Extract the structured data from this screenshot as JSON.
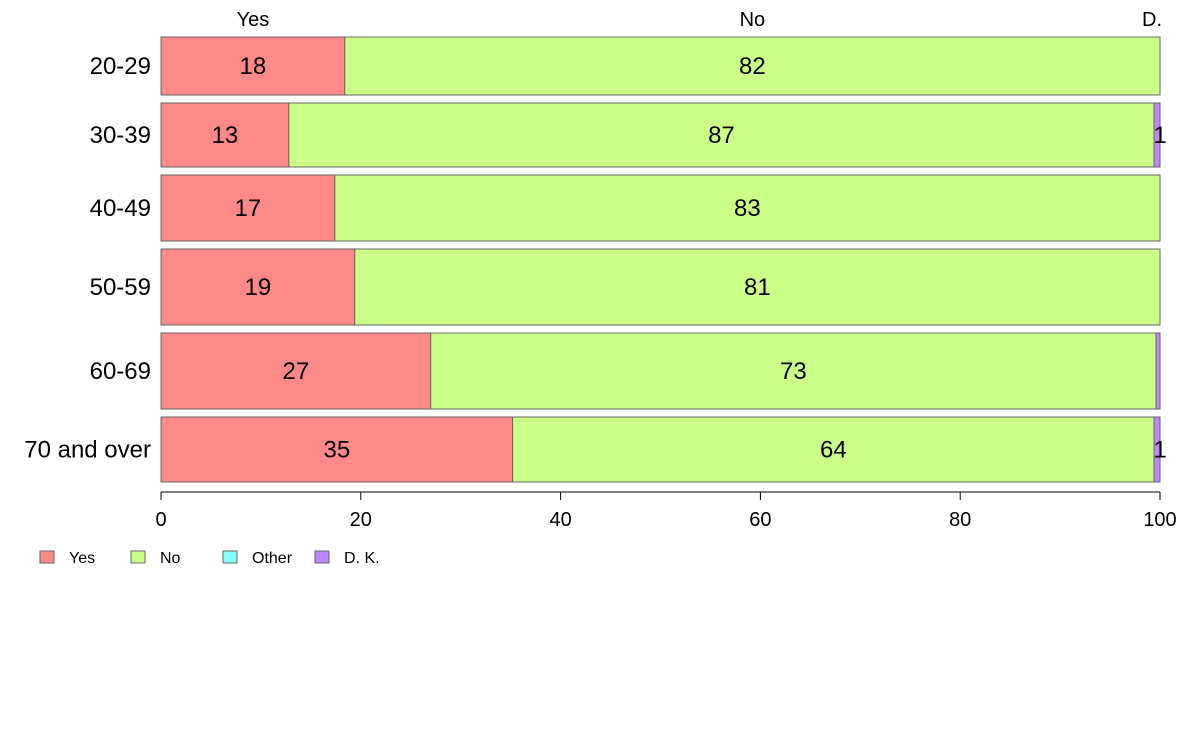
{
  "chart_data": {
    "type": "bar",
    "orientation": "horizontal",
    "stacked": true,
    "categories": [
      "20-29",
      "30-39",
      "40-49",
      "50-59",
      "60-69",
      "70 and over"
    ],
    "series": [
      {
        "name": "Yes",
        "color": "#ff8888",
        "values": [
          18.4,
          12.8,
          17.4,
          19.4,
          27.0,
          35.2
        ]
      },
      {
        "name": "No",
        "color": "#ccff88",
        "values": [
          81.6,
          86.6,
          82.6,
          80.6,
          72.6,
          64.2
        ]
      },
      {
        "name": "Other",
        "color": "#88ffff",
        "values": [
          0,
          0,
          0,
          0,
          0,
          0
        ]
      },
      {
        "name": "D. K.",
        "color": "#bb88ff",
        "values": [
          0,
          0.6,
          0,
          0,
          0.4,
          0.6
        ]
      }
    ],
    "data_labels": [
      [
        "18",
        "82",
        "",
        ""
      ],
      [
        "13",
        "87",
        "",
        "1"
      ],
      [
        "17",
        "83",
        "",
        ""
      ],
      [
        "19",
        "81",
        "",
        ""
      ],
      [
        "27",
        "73",
        "",
        ""
      ],
      [
        "35",
        "64",
        "",
        "1"
      ]
    ],
    "top_labels": [
      "Yes",
      "No",
      "D."
    ],
    "xlim": [
      0,
      100
    ],
    "xticks": [
      0,
      20,
      40,
      60,
      80,
      100
    ],
    "grid": false,
    "legend": {
      "position": "bottom-left",
      "items": [
        "Yes",
        "No",
        "Other",
        "D. K."
      ]
    }
  }
}
